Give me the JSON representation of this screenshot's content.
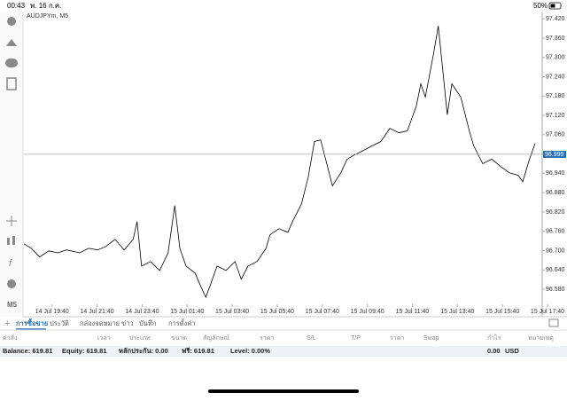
{
  "status_bar": {
    "time": "00:43",
    "date": "พ. 16 ก.ค.",
    "battery": "50%"
  },
  "chart_data": {
    "type": "line",
    "title": "AUDJPYm, M5",
    "color": "#000000",
    "x": [
      0,
      1.3,
      2.8,
      4.4,
      6.0,
      7.6,
      9.9,
      11.5,
      13.1,
      14.6,
      16.2,
      17.8,
      19.4,
      20.1,
      20.9,
      22.5,
      24.1,
      25.6,
      26.8,
      27.7,
      28.8,
      30.4,
      31.2,
      32.3,
      33.2,
      34.3,
      35.9,
      37.5,
      38.6,
      39.8,
      41.4,
      43.0,
      43.7,
      45.3,
      46.9,
      47.7,
      49.3,
      50.5,
      51.6,
      52.7,
      54.0,
      54.8,
      56.3,
      57.4,
      58.7,
      60.3,
      61.8,
      63.4,
      65.0,
      66.6,
      68.1,
      69.7,
      70.5,
      71.3,
      72.8,
      73.6,
      74.4,
      75.2,
      76.0,
      77.6,
      79.2,
      79.9,
      81.5,
      83.1,
      84.7,
      86.2,
      87.8,
      88.6,
      89.8,
      90.8
    ],
    "values": [
      96.721,
      96.707,
      96.68,
      96.699,
      96.693,
      96.702,
      96.693,
      96.707,
      96.702,
      96.713,
      96.735,
      96.702,
      96.735,
      96.79,
      96.652,
      96.666,
      96.638,
      96.693,
      96.84,
      96.707,
      96.652,
      96.63,
      96.597,
      96.555,
      96.597,
      96.652,
      96.638,
      96.666,
      96.611,
      96.652,
      96.666,
      96.707,
      96.749,
      96.768,
      96.757,
      96.79,
      96.845,
      96.928,
      97.039,
      97.044,
      96.956,
      96.901,
      96.942,
      96.984,
      96.997,
      97.011,
      97.025,
      97.039,
      97.08,
      97.066,
      97.072,
      97.149,
      97.218,
      97.177,
      97.315,
      97.398,
      97.26,
      97.122,
      97.218,
      97.177,
      97.066,
      97.025,
      96.97,
      96.984,
      96.961,
      96.942,
      96.934,
      96.914,
      96.984,
      97.033
    ],
    "current_price": 96.999,
    "xlim": [
      0,
      93
    ],
    "ylim": [
      96.5,
      97.44
    ],
    "xticks": [
      {
        "value": 5,
        "label": "14 Jul 19:40"
      },
      {
        "value": 13,
        "label": "14 Jul 21:40"
      },
      {
        "value": 21,
        "label": "14 Jul 23:40"
      },
      {
        "value": 29,
        "label": "15 Jul 01:40"
      },
      {
        "value": 37,
        "label": "15 Jul 03:40"
      },
      {
        "value": 45,
        "label": "15 Jul 05:40"
      },
      {
        "value": 53,
        "label": "15 Jul 07:40"
      },
      {
        "value": 61,
        "label": "15 Jul 09:40"
      },
      {
        "value": 69,
        "label": "15 Jul 11:40"
      },
      {
        "value": 77,
        "label": "15 Jul 13:40"
      },
      {
        "value": 85,
        "label": "15 Jul 15:40"
      },
      {
        "value": 93,
        "label": "15 Jul 17:40"
      }
    ],
    "yticks": [
      {
        "value": 96.58,
        "label": "96.580"
      },
      {
        "value": 96.64,
        "label": "96.640"
      },
      {
        "value": 96.7,
        "label": "96.700"
      },
      {
        "value": 96.76,
        "label": "96.760"
      },
      {
        "value": 96.82,
        "label": "96.820"
      },
      {
        "value": 96.88,
        "label": "96.880"
      },
      {
        "value": 96.94,
        "label": "96.940"
      },
      {
        "value": 97.0,
        "label": "97.000"
      },
      {
        "value": 97.06,
        "label": "97.060"
      },
      {
        "value": 97.12,
        "label": "97.120"
      },
      {
        "value": 97.18,
        "label": "97.180"
      },
      {
        "value": 97.24,
        "label": "97.240"
      },
      {
        "value": 97.3,
        "label": "97.300"
      },
      {
        "value": 97.36,
        "label": "97.360"
      },
      {
        "value": 97.42,
        "label": "97.420"
      }
    ]
  },
  "toolbar": {
    "timeframe": "M5"
  },
  "tabs": [
    "การซื้อขาย",
    "ประวัติ",
    "กล่องจดหมาย",
    "ข่าว",
    "บันทึก",
    "การตั้งค่า"
  ],
  "table": {
    "headers": [
      "ค่าสั่ง",
      "เวลา",
      "ประเภท",
      "ขนาด",
      "สัญลักษณ์",
      "ราคา",
      "S/L",
      "T/P",
      "ราคา",
      "Swap",
      "กำไร",
      "หมายเหตุ"
    ]
  },
  "account": {
    "balance": "Balance: 619.81",
    "equity": "Equity: 619.81",
    "margin": "หลักประกัน: 0.00",
    "free": "ฟรี: 619.81",
    "level": "Level: 0.00%",
    "profit": "0.00",
    "currency": "USD"
  }
}
